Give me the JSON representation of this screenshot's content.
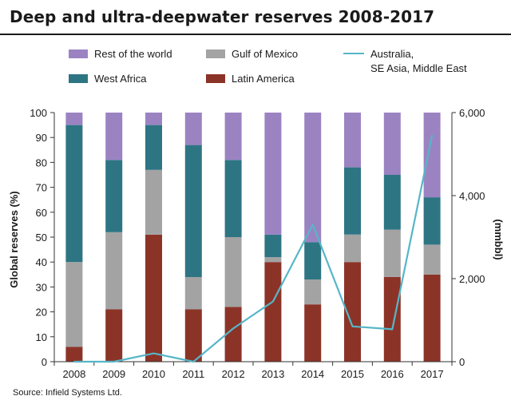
{
  "header": {
    "title": "Deep and ultra-deepwater reserves 2008-2017"
  },
  "footer": {
    "source": "Source: Infield Systems Ltd."
  },
  "colors": {
    "rest_of_world": "#9b83c2",
    "gulf_of_mexico": "#a3a3a3",
    "west_africa": "#2e7584",
    "latin_america": "#8c3328",
    "australia_line": "#56b6c7",
    "axis": "#333333"
  },
  "chart_data": {
    "type": "bar",
    "stacked": true,
    "title": "Deep and ultra-deepwater reserves 2008-2017",
    "categories": [
      "2008",
      "2009",
      "2010",
      "2011",
      "2012",
      "2013",
      "2014",
      "2015",
      "2016",
      "2017"
    ],
    "ylabel": "Global reserves (%)",
    "ylim": [
      0,
      100
    ],
    "yticks": [
      "0",
      "10",
      "20",
      "30",
      "40",
      "50",
      "60",
      "70",
      "80",
      "90",
      "100"
    ],
    "y2label": "(mmbbl)",
    "y2lim": [
      0,
      6000
    ],
    "y2ticks": [
      "0",
      "2,000",
      "4,000",
      "6,000"
    ],
    "legend_position": "top",
    "series": [
      {
        "name": "Latin America",
        "key": "latin_america",
        "values": [
          6,
          21,
          51,
          21,
          22,
          40,
          23,
          40,
          34,
          35
        ]
      },
      {
        "name": "Gulf of Mexico",
        "key": "gulf_of_mexico",
        "values": [
          34,
          31,
          26,
          13,
          28,
          2,
          10,
          11,
          19,
          12
        ]
      },
      {
        "name": "West Africa",
        "key": "west_africa",
        "values": [
          55,
          29,
          18,
          53,
          31,
          9,
          15,
          27,
          22,
          19
        ]
      },
      {
        "name": "Rest of the world",
        "key": "rest_of_world",
        "values": [
          5,
          19,
          5,
          13,
          19,
          49,
          52,
          22,
          25,
          34
        ]
      }
    ],
    "line_series": {
      "name": "Australia, SE Asia, Middle East",
      "name_lines": [
        "Australia,",
        "SE Asia, Middle East"
      ],
      "axis": "right",
      "values": [
        0,
        0,
        200,
        0,
        800,
        1450,
        3300,
        850,
        780,
        5450
      ]
    }
  }
}
